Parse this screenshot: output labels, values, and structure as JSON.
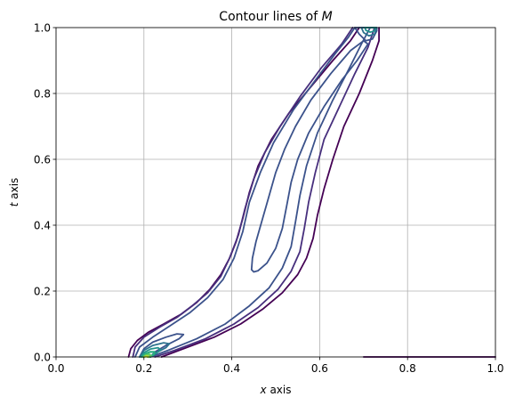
{
  "chart_data": {
    "type": "contour",
    "title": "Contour lines of ",
    "title_math": "M",
    "xlabel_math": "x",
    "xlabel": " axis",
    "ylabel_math": "t",
    "ylabel": " axis",
    "xlim": [
      0.0,
      1.0
    ],
    "ylim": [
      0.0,
      1.0
    ],
    "xticks": [
      "0.0",
      "0.2",
      "0.4",
      "0.6",
      "0.8",
      "1.0"
    ],
    "yticks": [
      "0.0",
      "0.2",
      "0.4",
      "0.6",
      "0.8",
      "1.0"
    ],
    "grid": true,
    "colormap": "viridis",
    "colors": [
      "#440154",
      "#472f7d",
      "#3b528b",
      "#2c728e",
      "#21918c",
      "#28ae80",
      "#5ec962",
      "#addc30"
    ],
    "contours": [
      {
        "level_index": 0,
        "points": [
          [
            0.165,
            0.0
          ],
          [
            0.17,
            0.025
          ],
          [
            0.185,
            0.05
          ],
          [
            0.21,
            0.075
          ],
          [
            0.245,
            0.1
          ],
          [
            0.285,
            0.13
          ],
          [
            0.32,
            0.165
          ],
          [
            0.35,
            0.205
          ],
          [
            0.375,
            0.25
          ],
          [
            0.395,
            0.3
          ],
          [
            0.41,
            0.35
          ],
          [
            0.425,
            0.42
          ],
          [
            0.44,
            0.5
          ],
          [
            0.46,
            0.58
          ],
          [
            0.49,
            0.66
          ],
          [
            0.53,
            0.74
          ],
          [
            0.58,
            0.82
          ],
          [
            0.63,
            0.9
          ],
          [
            0.67,
            0.96
          ],
          [
            0.69,
            1.0
          ]
        ]
      },
      {
        "level_index": 0,
        "points": [
          [
            0.24,
            0.0
          ],
          [
            0.29,
            0.025
          ],
          [
            0.36,
            0.06
          ],
          [
            0.42,
            0.1
          ],
          [
            0.47,
            0.145
          ],
          [
            0.515,
            0.195
          ],
          [
            0.55,
            0.25
          ],
          [
            0.57,
            0.3
          ],
          [
            0.585,
            0.36
          ],
          [
            0.595,
            0.43
          ],
          [
            0.61,
            0.51
          ],
          [
            0.63,
            0.6
          ],
          [
            0.655,
            0.7
          ],
          [
            0.69,
            0.8
          ],
          [
            0.72,
            0.9
          ],
          [
            0.735,
            0.96
          ],
          [
            0.735,
            1.0
          ]
        ]
      },
      {
        "level_index": 0,
        "points": [
          [
            0.7,
            0.0
          ],
          [
            1.0,
            0.0
          ]
        ]
      },
      {
        "level_index": 1,
        "points": [
          [
            0.175,
            0.0
          ],
          [
            0.18,
            0.03
          ],
          [
            0.2,
            0.06
          ],
          [
            0.235,
            0.09
          ],
          [
            0.275,
            0.12
          ],
          [
            0.31,
            0.155
          ],
          [
            0.345,
            0.195
          ],
          [
            0.375,
            0.245
          ],
          [
            0.395,
            0.3
          ],
          [
            0.415,
            0.37
          ],
          [
            0.43,
            0.45
          ],
          [
            0.45,
            0.54
          ],
          [
            0.475,
            0.62
          ],
          [
            0.51,
            0.7
          ],
          [
            0.555,
            0.79
          ],
          [
            0.605,
            0.88
          ],
          [
            0.65,
            0.95
          ],
          [
            0.675,
            1.0
          ]
        ]
      },
      {
        "level_index": 1,
        "points": [
          [
            0.225,
            0.0
          ],
          [
            0.27,
            0.02
          ],
          [
            0.34,
            0.055
          ],
          [
            0.405,
            0.1
          ],
          [
            0.46,
            0.15
          ],
          [
            0.505,
            0.205
          ],
          [
            0.535,
            0.26
          ],
          [
            0.555,
            0.32
          ],
          [
            0.565,
            0.39
          ],
          [
            0.575,
            0.47
          ],
          [
            0.59,
            0.56
          ],
          [
            0.61,
            0.66
          ],
          [
            0.645,
            0.76
          ],
          [
            0.68,
            0.86
          ],
          [
            0.71,
            0.94
          ],
          [
            0.725,
            1.0
          ]
        ]
      },
      {
        "level_index": 2,
        "points": [
          [
            0.18,
            0.0
          ],
          [
            0.19,
            0.03
          ],
          [
            0.22,
            0.06
          ],
          [
            0.26,
            0.095
          ],
          [
            0.305,
            0.135
          ],
          [
            0.345,
            0.18
          ],
          [
            0.38,
            0.235
          ],
          [
            0.405,
            0.3
          ],
          [
            0.425,
            0.38
          ],
          [
            0.44,
            0.47
          ],
          [
            0.465,
            0.56
          ],
          [
            0.495,
            0.65
          ],
          [
            0.54,
            0.75
          ],
          [
            0.59,
            0.84
          ],
          [
            0.635,
            0.92
          ],
          [
            0.665,
            0.97
          ],
          [
            0.68,
            1.0
          ]
        ]
      },
      {
        "level_index": 2,
        "points": [
          [
            0.215,
            0.0
          ],
          [
            0.255,
            0.02
          ],
          [
            0.32,
            0.055
          ],
          [
            0.385,
            0.1
          ],
          [
            0.44,
            0.155
          ],
          [
            0.485,
            0.21
          ],
          [
            0.515,
            0.27
          ],
          [
            0.535,
            0.335
          ],
          [
            0.545,
            0.41
          ],
          [
            0.555,
            0.49
          ],
          [
            0.57,
            0.58
          ],
          [
            0.595,
            0.68
          ],
          [
            0.63,
            0.78
          ],
          [
            0.665,
            0.87
          ],
          [
            0.695,
            0.95
          ],
          [
            0.715,
            1.0
          ]
        ]
      },
      {
        "level_index": 2,
        "points": [
          [
            0.445,
            0.265
          ],
          [
            0.45,
            0.258
          ],
          [
            0.46,
            0.262
          ],
          [
            0.48,
            0.285
          ],
          [
            0.5,
            0.33
          ],
          [
            0.515,
            0.39
          ],
          [
            0.525,
            0.46
          ],
          [
            0.535,
            0.53
          ],
          [
            0.55,
            0.6
          ],
          [
            0.575,
            0.68
          ],
          [
            0.61,
            0.76
          ],
          [
            0.65,
            0.84
          ],
          [
            0.685,
            0.9
          ],
          [
            0.71,
            0.95
          ],
          [
            0.7,
            0.96
          ],
          [
            0.67,
            0.93
          ],
          [
            0.625,
            0.86
          ],
          [
            0.58,
            0.78
          ],
          [
            0.545,
            0.7
          ],
          [
            0.52,
            0.63
          ],
          [
            0.5,
            0.56
          ],
          [
            0.485,
            0.49
          ],
          [
            0.47,
            0.42
          ],
          [
            0.455,
            0.35
          ],
          [
            0.447,
            0.3
          ],
          [
            0.445,
            0.265
          ]
        ]
      },
      {
        "level_index": 2,
        "points": [
          [
            0.19,
            0.0
          ],
          [
            0.2,
            0.025
          ],
          [
            0.22,
            0.045
          ],
          [
            0.25,
            0.06
          ],
          [
            0.275,
            0.07
          ],
          [
            0.29,
            0.068
          ],
          [
            0.28,
            0.055
          ],
          [
            0.25,
            0.035
          ],
          [
            0.225,
            0.015
          ],
          [
            0.215,
            0.0
          ]
        ]
      },
      {
        "level_index": 2,
        "points": [
          [
            0.69,
            0.98
          ],
          [
            0.705,
            0.96
          ],
          [
            0.72,
            0.965
          ],
          [
            0.73,
            0.99
          ],
          [
            0.73,
            1.0
          ],
          [
            0.68,
            1.0
          ],
          [
            0.69,
            0.98
          ]
        ]
      },
      {
        "level_index": 3,
        "points": [
          [
            0.19,
            0.0
          ],
          [
            0.2,
            0.02
          ],
          [
            0.22,
            0.035
          ],
          [
            0.245,
            0.043
          ],
          [
            0.258,
            0.04
          ],
          [
            0.25,
            0.028
          ],
          [
            0.23,
            0.014
          ],
          [
            0.212,
            0.0
          ]
        ]
      },
      {
        "level_index": 3,
        "points": [
          [
            0.7,
            0.985
          ],
          [
            0.712,
            0.975
          ],
          [
            0.725,
            0.98
          ],
          [
            0.73,
            1.0
          ],
          [
            0.695,
            1.0
          ],
          [
            0.7,
            0.985
          ]
        ]
      },
      {
        "level_index": 4,
        "points": [
          [
            0.193,
            0.0
          ],
          [
            0.2,
            0.013
          ],
          [
            0.215,
            0.024
          ],
          [
            0.232,
            0.028
          ],
          [
            0.238,
            0.022
          ],
          [
            0.228,
            0.011
          ],
          [
            0.212,
            0.0
          ]
        ]
      },
      {
        "level_index": 4,
        "points": [
          [
            0.705,
            0.992
          ],
          [
            0.715,
            0.986
          ],
          [
            0.725,
            0.99
          ],
          [
            0.727,
            1.0
          ],
          [
            0.703,
            1.0
          ],
          [
            0.705,
            0.992
          ]
        ]
      },
      {
        "level_index": 5,
        "points": [
          [
            0.196,
            0.0
          ],
          [
            0.202,
            0.009
          ],
          [
            0.214,
            0.015
          ],
          [
            0.224,
            0.015
          ],
          [
            0.222,
            0.007
          ],
          [
            0.212,
            0.0
          ]
        ]
      },
      {
        "level_index": 6,
        "points": [
          [
            0.199,
            0.0
          ],
          [
            0.204,
            0.005
          ],
          [
            0.212,
            0.008
          ],
          [
            0.216,
            0.004
          ],
          [
            0.211,
            0.0
          ]
        ]
      },
      {
        "level_index": 7,
        "points": [
          [
            0.201,
            0.0
          ],
          [
            0.206,
            0.003
          ],
          [
            0.21,
            0.002
          ],
          [
            0.208,
            0.0
          ]
        ]
      }
    ]
  }
}
